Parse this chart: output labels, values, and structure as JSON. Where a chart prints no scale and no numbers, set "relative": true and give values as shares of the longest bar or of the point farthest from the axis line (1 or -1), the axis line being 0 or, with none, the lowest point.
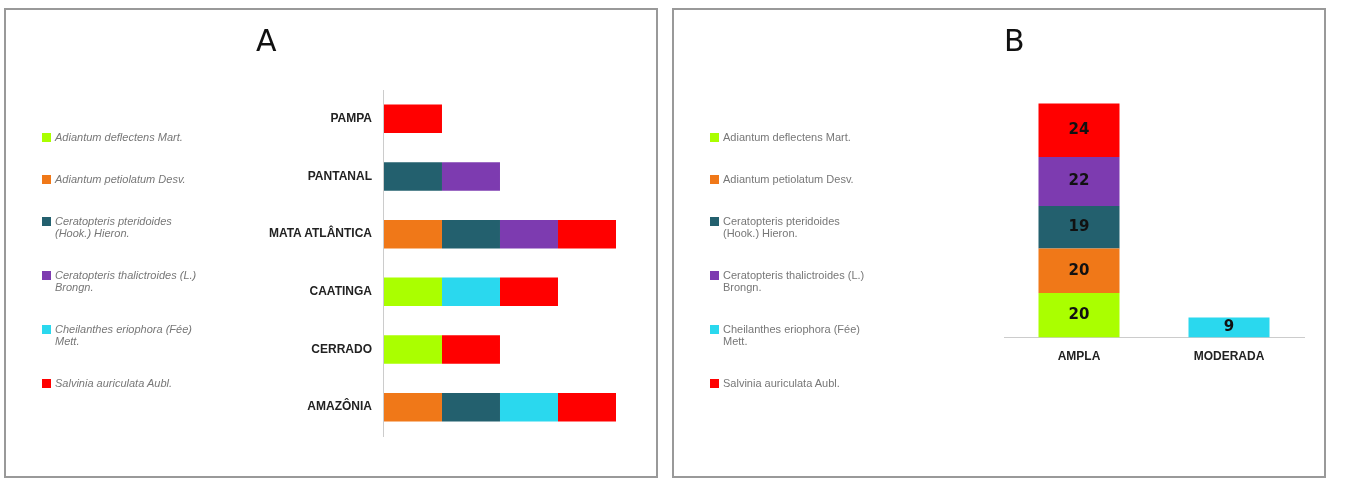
{
  "chart_data": [
    {
      "type": "bar",
      "title": "A",
      "orientation": "horizontal",
      "stacked": true,
      "relative": true,
      "legend": "left",
      "categories": [
        "PAMPA",
        "PANTANAL",
        "MATA ATLÂNTICA",
        "CAATINGA",
        "CERRADO",
        "AMAZÔNIA"
      ],
      "series": [
        {
          "name": "Adiantum deflectens Mart.",
          "color": "#aaff00",
          "values": [
            null,
            null,
            null,
            0.25,
            0.25,
            null
          ]
        },
        {
          "name": "Adiantum petiolatum Desv.",
          "color": "#f07818",
          "values": [
            null,
            null,
            0.25,
            null,
            null,
            0.25
          ]
        },
        {
          "name": "Ceratopteris pteridoides (Hook.) Hieron.",
          "color": "#23606e",
          "values": [
            null,
            0.25,
            0.25,
            null,
            null,
            0.25
          ]
        },
        {
          "name": "Ceratopteris thalictroides (L.) Brongn.",
          "color": "#7d3bb0",
          "values": [
            null,
            0.25,
            0.25,
            null,
            null,
            null
          ]
        },
        {
          "name": "Cheilanthes eriophora (Fée) Mett.",
          "color": "#2ad8ee",
          "values": [
            null,
            null,
            null,
            0.25,
            null,
            0.25
          ]
        },
        {
          "name": "Salvinia auriculata Aubl.",
          "color": "#ff0000",
          "values": [
            0.25,
            null,
            0.25,
            0.25,
            0.25,
            0.25
          ]
        }
      ]
    },
    {
      "type": "bar",
      "title": "B",
      "stacked": true,
      "legend": "left",
      "data_labels": true,
      "categories": [
        "AMPLA",
        "MODERADA"
      ],
      "series": [
        {
          "name": "Adiantum deflectens Mart.",
          "color": "#aaff00",
          "values": [
            20,
            null
          ]
        },
        {
          "name": "Adiantum petiolatum Desv.",
          "color": "#f07818",
          "values": [
            20,
            null
          ]
        },
        {
          "name": "Ceratopteris pteridoides (Hook.) Hieron.",
          "color": "#23606e",
          "values": [
            19,
            null
          ]
        },
        {
          "name": "Ceratopteris thalictroides (L.) Brongn.",
          "color": "#7d3bb0",
          "values": [
            22,
            null
          ]
        },
        {
          "name": "Cheilanthes eriophora (Fée) Mett.",
          "color": "#2ad8ee",
          "values": [
            null,
            9
          ]
        },
        {
          "name": "Salvinia auriculata Aubl.",
          "color": "#ff0000",
          "values": [
            24,
            null
          ]
        }
      ]
    }
  ]
}
